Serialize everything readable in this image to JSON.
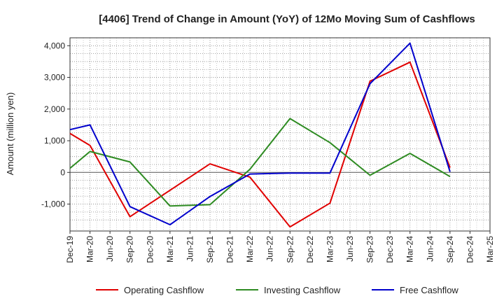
{
  "chart_data": {
    "type": "line",
    "title": "[4406]  Trend of Change in Amount (YoY) of 12Mo Moving Sum of Cashflows",
    "xlabel": "",
    "ylabel": "Amount (million yen)",
    "ylim": [
      -1850,
      4250
    ],
    "yticks": [
      -1000,
      0,
      1000,
      2000,
      3000,
      4000
    ],
    "ytick_labels": [
      "-1,000",
      "0",
      "1,000",
      "2,000",
      "3,000",
      "4,000"
    ],
    "categories": [
      "Dec-19",
      "Mar-20",
      "Jun-20",
      "Sep-20",
      "Dec-20",
      "Mar-21",
      "Jun-21",
      "Sep-21",
      "Dec-21",
      "Mar-22",
      "Jun-22",
      "Sep-22",
      "Dec-22",
      "Mar-23",
      "Jun-23",
      "Sep-23",
      "Dec-23",
      "Mar-24",
      "Jun-24",
      "Sep-24",
      "Dec-24",
      "Mar-25"
    ],
    "grid": true,
    "legend_position": "bottom",
    "series": [
      {
        "name": "Operating Cashflow",
        "color": "#e00000",
        "values": [
          1230,
          850,
          null,
          -1400,
          null,
          null,
          null,
          270,
          null,
          -150,
          null,
          -1720,
          null,
          -970,
          null,
          2880,
          null,
          3480,
          null,
          150,
          null,
          null
        ]
      },
      {
        "name": "Investing Cashflow",
        "color": "#2e8b22",
        "values": [
          130,
          660,
          null,
          330,
          null,
          -1060,
          null,
          -1020,
          null,
          100,
          null,
          1700,
          null,
          940,
          null,
          -90,
          null,
          600,
          null,
          -130,
          null,
          null
        ]
      },
      {
        "name": "Free Cashflow",
        "color": "#0000cc",
        "values": [
          1350,
          1500,
          null,
          -1080,
          null,
          -1650,
          null,
          -760,
          null,
          -50,
          null,
          -20,
          null,
          -20,
          null,
          2800,
          null,
          4080,
          null,
          20,
          null,
          null
        ]
      }
    ]
  }
}
